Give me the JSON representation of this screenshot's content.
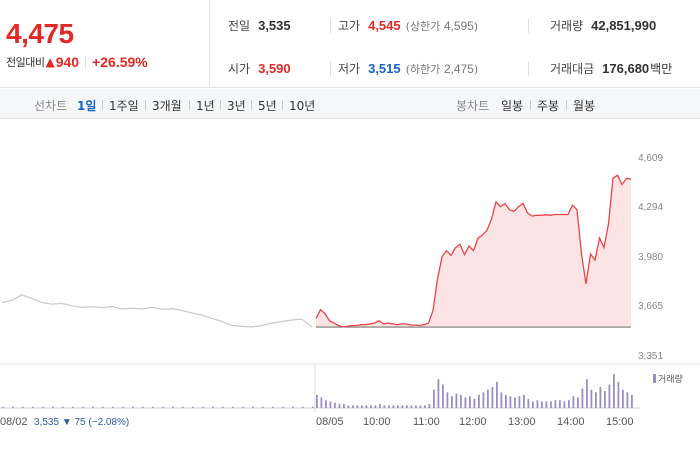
{
  "summary": {
    "price": "4,475",
    "change_label": "전일대비",
    "change_arrow": "▲",
    "change_value": "940",
    "change_rate": "+26.59%",
    "prev_close": {
      "label": "전일",
      "value": "3,535"
    },
    "open": {
      "label": "시가",
      "value": "3,590"
    },
    "high": {
      "label": "고가",
      "value": "4,545",
      "sub_label": "상한가",
      "sub_value": "4,595"
    },
    "low": {
      "label": "저가",
      "value": "3,515",
      "sub_label": "하한가",
      "sub_value": "2,475"
    },
    "volume": {
      "label": "거래량",
      "value": "42,851,990"
    },
    "trade_value": {
      "label": "거래대금",
      "value": "176,680",
      "unit": "백만"
    }
  },
  "toolbar": {
    "line_label": "선차트",
    "line_periods": [
      "1일",
      "1주일",
      "3개월",
      "1년",
      "3년",
      "5년",
      "10년"
    ],
    "active_period": "1일",
    "candle_label": "봉차트",
    "candle_periods": [
      "일봉",
      "주봉",
      "월봉"
    ]
  },
  "colors": {
    "up": "#e22926",
    "down": "#1a63c8",
    "price_line": "#e8454a",
    "price_fill": "#fde4e4",
    "prev_line": "#c8c8c8",
    "volume": "#9b8ec4"
  },
  "chart_data": {
    "type": "line",
    "ylim": [
      3351,
      4609
    ],
    "yticks": [
      "4,609",
      "4,294",
      "3,980",
      "3,665",
      "3,351"
    ],
    "xticks": [
      "08/02",
      "08/05",
      "10:00",
      "11:00",
      "12:00",
      "13:00",
      "14:00",
      "15:00"
    ],
    "prev_day": {
      "date": "08/02",
      "close": "3,535",
      "change_arrow": "▼",
      "change": "75",
      "rate": "(−2.08%)",
      "values": [
        3690,
        3705,
        3740,
        3715,
        3690,
        3680,
        3685,
        3670,
        3660,
        3665,
        3658,
        3665,
        3650,
        3655,
        3650,
        3660,
        3648,
        3652,
        3640,
        3625,
        3610,
        3590,
        3570,
        3545,
        3540,
        3535,
        3545,
        3560,
        3570,
        3580,
        3585,
        3535
      ]
    },
    "series": [
      {
        "values": [
          3590,
          3645,
          3620,
          3575,
          3560,
          3545,
          3535,
          3540,
          3545,
          3545,
          3550,
          3550,
          3555,
          3560,
          3575,
          3555,
          3560,
          3555,
          3550,
          3555,
          3555,
          3548,
          3548,
          3545,
          3550,
          3560,
          3640,
          3840,
          3980,
          4020,
          3990,
          4040,
          4060,
          3995,
          4050,
          4020,
          4100,
          4120,
          4150,
          4220,
          4330,
          4300,
          4320,
          4280,
          4270,
          4300,
          4320,
          4260,
          4240,
          4245,
          4245,
          4248,
          4245,
          4250,
          4250,
          4250,
          4250,
          4310,
          4280,
          4000,
          3810,
          4000,
          3960,
          4100,
          4040,
          4190,
          4480,
          4500,
          4440,
          4480,
          4475
        ],
        "baseline": 3535
      }
    ],
    "volume_label": "거래량",
    "prev_volume": [
      1,
      1,
      1,
      1,
      1,
      1,
      1,
      1,
      1,
      1,
      1,
      1,
      1,
      1,
      1,
      1,
      1,
      1,
      1,
      1,
      1,
      1,
      1,
      1,
      1,
      1,
      1,
      1,
      1,
      1,
      1,
      1
    ],
    "volume": [
      10,
      8,
      6,
      5,
      4,
      3,
      3,
      2,
      2,
      2,
      2,
      2,
      2,
      2,
      3,
      2,
      2,
      2,
      2,
      2,
      2,
      2,
      2,
      2,
      2,
      3,
      14,
      22,
      18,
      12,
      9,
      11,
      10,
      8,
      9,
      7,
      10,
      12,
      14,
      16,
      20,
      12,
      10,
      9,
      8,
      9,
      10,
      7,
      5,
      6,
      5,
      5,
      5,
      6,
      6,
      5,
      6,
      9,
      8,
      15,
      22,
      14,
      12,
      16,
      13,
      18,
      26,
      20,
      14,
      12,
      10
    ]
  }
}
